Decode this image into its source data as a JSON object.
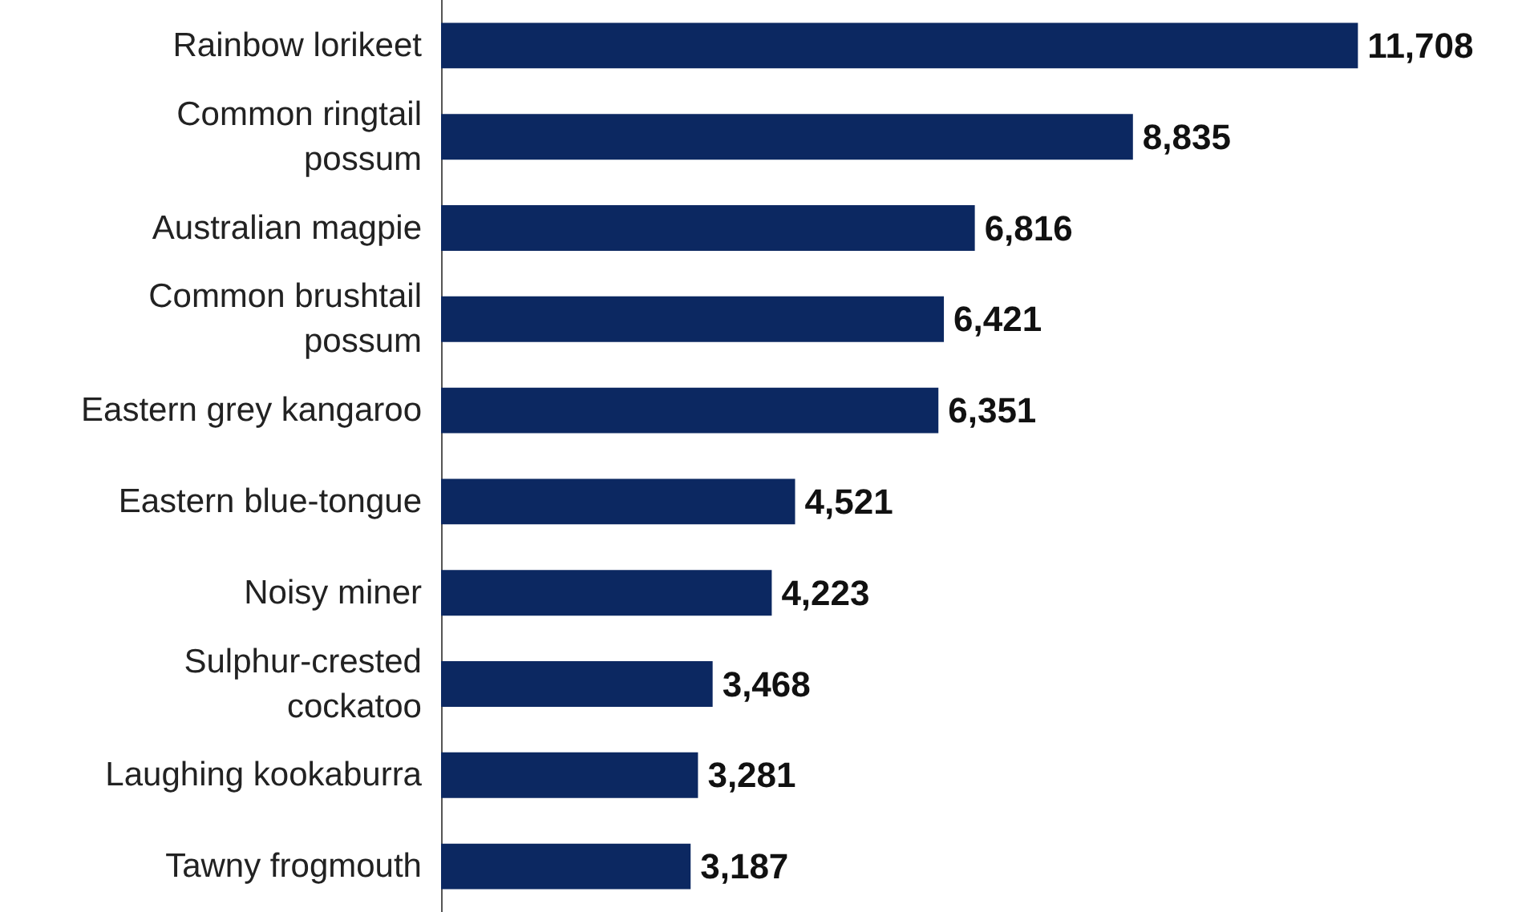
{
  "chart_data": {
    "type": "bar",
    "orientation": "horizontal",
    "categories": [
      "Rainbow lorikeet",
      "Common ringtail\npossum",
      "Australian magpie",
      "Common brushtail\npossum",
      "Eastern grey kangaroo",
      "Eastern blue-tongue",
      "Noisy miner",
      "Sulphur-crested\ncockatoo",
      "Laughing kookaburra",
      "Tawny frogmouth"
    ],
    "values": [
      11708,
      8835,
      6816,
      6421,
      6351,
      4521,
      4223,
      3468,
      3281,
      3187
    ],
    "value_labels": [
      "11,708",
      "8,835",
      "6,816",
      "6,421",
      "6,351",
      "4,521",
      "4,223",
      "3,468",
      "3,281",
      "3,187"
    ],
    "color": "#0c2861"
  }
}
